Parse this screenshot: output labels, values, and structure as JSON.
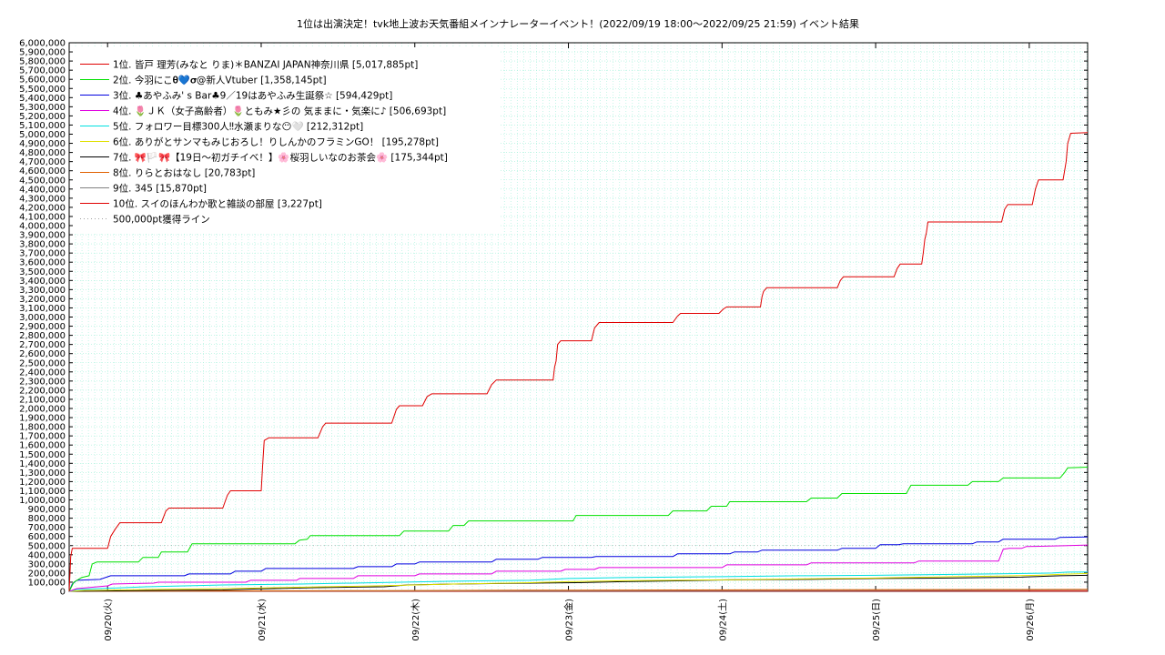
{
  "chart_data": {
    "type": "line",
    "title": "1位は出演決定！tvk地上波お天気番組メインナレーターイベント！(2022/09/19 18:00〜2022/09/25 21:59)",
    "subtitle": "イベント結果",
    "ylim": [
      0,
      6000000
    ],
    "ytick_step": 100000,
    "xlim": [
      0,
      6.32
    ],
    "x_ticks": [
      {
        "x": 0.25,
        "label": "09/20(火)"
      },
      {
        "x": 1.25,
        "label": "09/21(水)"
      },
      {
        "x": 2.25,
        "label": "09/22(木)"
      },
      {
        "x": 3.25,
        "label": "09/23(金)"
      },
      {
        "x": 4.25,
        "label": "09/24(土)"
      },
      {
        "x": 5.25,
        "label": "09/25(日)"
      },
      {
        "x": 6.25,
        "label": "09/26(月)"
      }
    ],
    "grid": true,
    "legend_position": "top-left",
    "threshold": {
      "name": "500,000pt獲得ライン",
      "value": 500000,
      "color": "#a0a0a0"
    },
    "series": [
      {
        "name": "1位. 皆戸 理芳(みなと りま)＊BANZAI JAPAN神奈川県 [5,017,885pt]",
        "color": "#e00000",
        "points": [
          [
            0,
            0
          ],
          [
            0.01,
            380000
          ],
          [
            0.02,
            470000
          ],
          [
            0.25,
            470000
          ],
          [
            0.27,
            600000
          ],
          [
            0.3,
            680000
          ],
          [
            0.33,
            750000
          ],
          [
            0.6,
            750000
          ],
          [
            0.63,
            880000
          ],
          [
            0.65,
            910000
          ],
          [
            1.0,
            910000
          ],
          [
            1.03,
            1050000
          ],
          [
            1.05,
            1100000
          ],
          [
            1.25,
            1100000
          ],
          [
            1.26,
            1400000
          ],
          [
            1.27,
            1650000
          ],
          [
            1.3,
            1680000
          ],
          [
            1.62,
            1680000
          ],
          [
            1.65,
            1800000
          ],
          [
            1.67,
            1840000
          ],
          [
            2.1,
            1840000
          ],
          [
            2.13,
            1990000
          ],
          [
            2.15,
            2030000
          ],
          [
            2.3,
            2030000
          ],
          [
            2.33,
            2130000
          ],
          [
            2.36,
            2160000
          ],
          [
            2.72,
            2160000
          ],
          [
            2.75,
            2260000
          ],
          [
            2.78,
            2310000
          ],
          [
            3.15,
            2310000
          ],
          [
            3.16,
            2450000
          ],
          [
            3.17,
            2520000
          ],
          [
            3.18,
            2700000
          ],
          [
            3.2,
            2740000
          ],
          [
            3.4,
            2740000
          ],
          [
            3.42,
            2880000
          ],
          [
            3.45,
            2940000
          ],
          [
            3.93,
            2940000
          ],
          [
            3.96,
            3010000
          ],
          [
            3.98,
            3040000
          ],
          [
            4.23,
            3040000
          ],
          [
            4.26,
            3090000
          ],
          [
            4.28,
            3110000
          ],
          [
            4.5,
            3110000
          ],
          [
            4.51,
            3220000
          ],
          [
            4.52,
            3280000
          ],
          [
            4.54,
            3320000
          ],
          [
            5.0,
            3320000
          ],
          [
            5.02,
            3400000
          ],
          [
            5.04,
            3440000
          ],
          [
            5.37,
            3440000
          ],
          [
            5.39,
            3530000
          ],
          [
            5.41,
            3580000
          ],
          [
            5.55,
            3580000
          ],
          [
            5.56,
            3700000
          ],
          [
            5.57,
            3850000
          ],
          [
            5.58,
            3920000
          ],
          [
            5.59,
            4040000
          ],
          [
            6.07,
            4040000
          ],
          [
            6.09,
            4180000
          ],
          [
            6.11,
            4230000
          ],
          [
            6.27,
            4230000
          ],
          [
            6.29,
            4400000
          ],
          [
            6.31,
            4500000
          ],
          [
            6.47,
            4500000
          ],
          [
            6.49,
            4700000
          ],
          [
            6.5,
            4900000
          ],
          [
            6.52,
            5010000
          ],
          [
            6.63,
            5017885
          ]
        ]
      },
      {
        "name": "2位. 今羽にこ𝛉💙𝛔@新人Vtuber [1,358,145pt]",
        "color": "#00e000",
        "points": [
          [
            0,
            0
          ],
          [
            0.03,
            100000
          ],
          [
            0.08,
            150000
          ],
          [
            0.13,
            170000
          ],
          [
            0.15,
            300000
          ],
          [
            0.18,
            320000
          ],
          [
            0.45,
            320000
          ],
          [
            0.48,
            370000
          ],
          [
            0.58,
            370000
          ],
          [
            0.6,
            430000
          ],
          [
            0.77,
            430000
          ],
          [
            0.8,
            520000
          ],
          [
            1.47,
            520000
          ],
          [
            1.5,
            560000
          ],
          [
            1.55,
            570000
          ],
          [
            1.57,
            610000
          ],
          [
            2.15,
            610000
          ],
          [
            2.18,
            660000
          ],
          [
            2.47,
            660000
          ],
          [
            2.5,
            720000
          ],
          [
            2.57,
            720000
          ],
          [
            2.6,
            770000
          ],
          [
            3.28,
            770000
          ],
          [
            3.3,
            830000
          ],
          [
            3.9,
            830000
          ],
          [
            3.93,
            880000
          ],
          [
            4.15,
            880000
          ],
          [
            4.18,
            930000
          ],
          [
            4.28,
            930000
          ],
          [
            4.3,
            980000
          ],
          [
            4.8,
            980000
          ],
          [
            4.83,
            1020000
          ],
          [
            5.0,
            1020000
          ],
          [
            5.03,
            1070000
          ],
          [
            5.45,
            1070000
          ],
          [
            5.48,
            1160000
          ],
          [
            5.85,
            1160000
          ],
          [
            5.88,
            1200000
          ],
          [
            6.05,
            1200000
          ],
          [
            6.08,
            1240000
          ],
          [
            6.45,
            1240000
          ],
          [
            6.48,
            1300000
          ],
          [
            6.5,
            1350000
          ],
          [
            6.63,
            1358145
          ]
        ]
      },
      {
        "name": "3位. ♣あやふみ' s Bar♣9／19はあやふみ生誕祭☆ [594,429pt]",
        "color": "#0000e0",
        "points": [
          [
            0,
            0
          ],
          [
            0.02,
            80000
          ],
          [
            0.05,
            120000
          ],
          [
            0.2,
            130000
          ],
          [
            0.27,
            170000
          ],
          [
            0.75,
            170000
          ],
          [
            0.78,
            190000
          ],
          [
            1.05,
            190000
          ],
          [
            1.08,
            220000
          ],
          [
            1.25,
            220000
          ],
          [
            1.28,
            250000
          ],
          [
            1.85,
            250000
          ],
          [
            1.88,
            270000
          ],
          [
            2.1,
            270000
          ],
          [
            2.13,
            300000
          ],
          [
            2.25,
            300000
          ],
          [
            2.28,
            320000
          ],
          [
            2.75,
            320000
          ],
          [
            2.78,
            350000
          ],
          [
            3.05,
            350000
          ],
          [
            3.08,
            370000
          ],
          [
            3.4,
            370000
          ],
          [
            3.43,
            380000
          ],
          [
            3.93,
            380000
          ],
          [
            3.96,
            410000
          ],
          [
            4.3,
            410000
          ],
          [
            4.33,
            430000
          ],
          [
            4.48,
            430000
          ],
          [
            4.51,
            450000
          ],
          [
            5.0,
            450000
          ],
          [
            5.03,
            470000
          ],
          [
            5.25,
            470000
          ],
          [
            5.28,
            510000
          ],
          [
            5.4,
            510000
          ],
          [
            5.43,
            520000
          ],
          [
            5.88,
            520000
          ],
          [
            5.91,
            540000
          ],
          [
            6.05,
            540000
          ],
          [
            6.08,
            570000
          ],
          [
            6.42,
            570000
          ],
          [
            6.45,
            590000
          ],
          [
            6.63,
            594429
          ]
        ]
      },
      {
        "name": "4位. 🌷ＪＫ（女子高齢者）🌷ともみ★彡の 気ままに・気楽に♪ [506,693pt]",
        "color": "#e000e0",
        "points": [
          [
            0,
            0
          ],
          [
            0.05,
            30000
          ],
          [
            0.25,
            60000
          ],
          [
            0.28,
            80000
          ],
          [
            0.55,
            90000
          ],
          [
            0.58,
            100000
          ],
          [
            1.15,
            100000
          ],
          [
            1.18,
            120000
          ],
          [
            1.48,
            120000
          ],
          [
            1.5,
            140000
          ],
          [
            1.85,
            140000
          ],
          [
            1.88,
            170000
          ],
          [
            2.25,
            170000
          ],
          [
            2.28,
            190000
          ],
          [
            2.75,
            190000
          ],
          [
            2.78,
            220000
          ],
          [
            3.2,
            220000
          ],
          [
            3.23,
            240000
          ],
          [
            3.42,
            240000
          ],
          [
            3.45,
            260000
          ],
          [
            4.25,
            260000
          ],
          [
            4.28,
            290000
          ],
          [
            4.8,
            290000
          ],
          [
            4.83,
            310000
          ],
          [
            5.5,
            310000
          ],
          [
            5.53,
            330000
          ],
          [
            6.05,
            330000
          ],
          [
            6.08,
            460000
          ],
          [
            6.12,
            470000
          ],
          [
            6.2,
            470000
          ],
          [
            6.23,
            490000
          ],
          [
            6.5,
            500000
          ],
          [
            6.63,
            506693
          ]
        ]
      },
      {
        "name": "5位. フォロワー目標300人‼水瀬まりな😶🤍 [212,312pt]",
        "color": "#00e0e0",
        "points": [
          [
            0,
            0
          ],
          [
            0.05,
            20000
          ],
          [
            0.2,
            30000
          ],
          [
            0.5,
            50000
          ],
          [
            1.0,
            70000
          ],
          [
            1.5,
            80000
          ],
          [
            2.0,
            95000
          ],
          [
            2.5,
            110000
          ],
          [
            3.0,
            120000
          ],
          [
            3.25,
            140000
          ],
          [
            3.6,
            150000
          ],
          [
            4.25,
            160000
          ],
          [
            4.75,
            170000
          ],
          [
            5.25,
            175000
          ],
          [
            5.5,
            180000
          ],
          [
            6.0,
            190000
          ],
          [
            6.4,
            200000
          ],
          [
            6.5,
            210000
          ],
          [
            6.63,
            212312
          ]
        ]
      },
      {
        "name": "6位. ありがとサンマもみじおろし！りしんかのフラミンGO！ [195,278pt]",
        "color": "#e0e000",
        "points": [
          [
            0,
            0
          ],
          [
            0.1,
            10000
          ],
          [
            0.5,
            20000
          ],
          [
            1.0,
            30000
          ],
          [
            1.5,
            45000
          ],
          [
            2.0,
            60000
          ],
          [
            2.5,
            80000
          ],
          [
            3.0,
            95000
          ],
          [
            3.25,
            105000
          ],
          [
            3.6,
            115000
          ],
          [
            4.25,
            125000
          ],
          [
            4.75,
            135000
          ],
          [
            5.25,
            145000
          ],
          [
            5.75,
            160000
          ],
          [
            6.0,
            165000
          ],
          [
            6.3,
            175000
          ],
          [
            6.45,
            185000
          ],
          [
            6.63,
            195278
          ]
        ]
      },
      {
        "name": "7位. 🎀🏳️🎀【19日〜初ガチイベ！】🌸桜羽しいなのお茶会🌸 [175,344pt]",
        "color": "#000000",
        "points": [
          [
            0,
            0
          ],
          [
            0.3,
            5000
          ],
          [
            0.6,
            10000
          ],
          [
            1.0,
            15000
          ],
          [
            1.2,
            25000
          ],
          [
            1.6,
            40000
          ],
          [
            2.05,
            50000
          ],
          [
            2.2,
            70000
          ],
          [
            2.5,
            80000
          ],
          [
            3.0,
            90000
          ],
          [
            3.3,
            95000
          ],
          [
            3.6,
            105000
          ],
          [
            4.0,
            115000
          ],
          [
            4.3,
            125000
          ],
          [
            4.8,
            130000
          ],
          [
            5.25,
            140000
          ],
          [
            5.75,
            145000
          ],
          [
            6.2,
            155000
          ],
          [
            6.45,
            170000
          ],
          [
            6.63,
            175344
          ]
        ]
      },
      {
        "name": "8位. りらとおはなし [20,783pt]",
        "color": "#e06000",
        "points": [
          [
            0,
            0
          ],
          [
            1.0,
            5000
          ],
          [
            2.0,
            8000
          ],
          [
            3.0,
            12000
          ],
          [
            4.0,
            15000
          ],
          [
            5.0,
            18000
          ],
          [
            6.0,
            20000
          ],
          [
            6.63,
            20783
          ]
        ]
      },
      {
        "name": "9位. 345 [15,870pt]",
        "color": "#808080",
        "points": [
          [
            0,
            0
          ],
          [
            1.0,
            2000
          ],
          [
            2.0,
            4000
          ],
          [
            3.0,
            6000
          ],
          [
            4.0,
            8000
          ],
          [
            5.0,
            9000
          ],
          [
            5.8,
            10000
          ],
          [
            6.0,
            13000
          ],
          [
            6.63,
            15870
          ]
        ]
      },
      {
        "name": "10位. スイのほんわか歌と雑談の部屋 [3,227pt]",
        "color": "#e00000",
        "points": [
          [
            0,
            0
          ],
          [
            1.0,
            1000
          ],
          [
            3.0,
            2000
          ],
          [
            5.0,
            2800
          ],
          [
            6.63,
            3227
          ]
        ]
      }
    ]
  }
}
